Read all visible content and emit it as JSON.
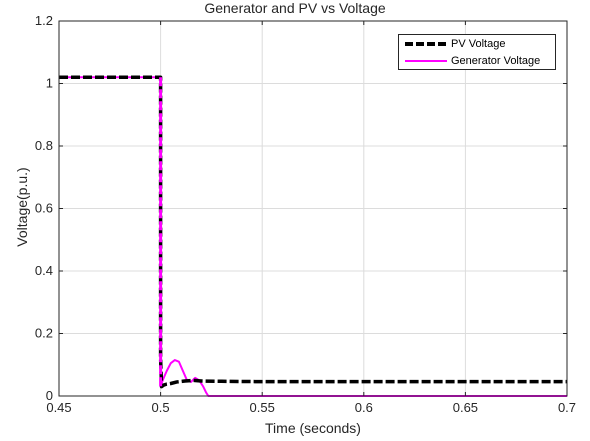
{
  "chart_data": {
    "type": "line",
    "title": "Generator and PV vs Voltage",
    "xlabel": "Time (seconds)",
    "ylabel": "Voltage(p.u.)",
    "xlim": [
      0.45,
      0.7
    ],
    "ylim": [
      0,
      1.2
    ],
    "xticks": [
      0.45,
      0.5,
      0.55,
      0.6,
      0.65,
      0.7
    ],
    "xtick_labels": [
      "0.45",
      "0.5",
      "0.55",
      "0.6",
      "0.65",
      "0.7"
    ],
    "yticks": [
      0,
      0.2,
      0.4,
      0.6,
      0.8,
      1.0,
      1.2
    ],
    "ytick_labels": [
      "0",
      "0.2",
      "0.4",
      "0.6",
      "0.8",
      "1",
      "1.2"
    ],
    "grid": true,
    "legend_position": "top-right",
    "series": [
      {
        "name": "PV Voltage",
        "color": "#000000",
        "style": "dashed",
        "x": [
          0.45,
          0.5,
          0.5,
          0.5005,
          0.5015,
          0.503,
          0.505,
          0.508,
          0.512,
          0.516,
          0.52,
          0.53,
          0.55,
          0.6,
          0.65,
          0.7
        ],
        "y": [
          1.02,
          1.02,
          0.12,
          0.03,
          0.035,
          0.038,
          0.04,
          0.045,
          0.048,
          0.05,
          0.048,
          0.047,
          0.046,
          0.046,
          0.046,
          0.046
        ]
      },
      {
        "name": "Generator Voltage",
        "color": "#ff00ff",
        "style": "solid",
        "x": [
          0.45,
          0.5,
          0.5,
          0.501,
          0.503,
          0.505,
          0.507,
          0.509,
          0.511,
          0.513,
          0.515,
          0.517,
          0.519,
          0.521,
          0.5225,
          0.5235,
          0.53,
          0.6,
          0.7
        ],
        "y": [
          1.02,
          1.02,
          0.03,
          0.05,
          0.08,
          0.105,
          0.115,
          0.11,
          0.08,
          0.05,
          0.045,
          0.058,
          0.05,
          0.03,
          0.01,
          0.0,
          0.0,
          0.0,
          0.0
        ]
      }
    ]
  }
}
